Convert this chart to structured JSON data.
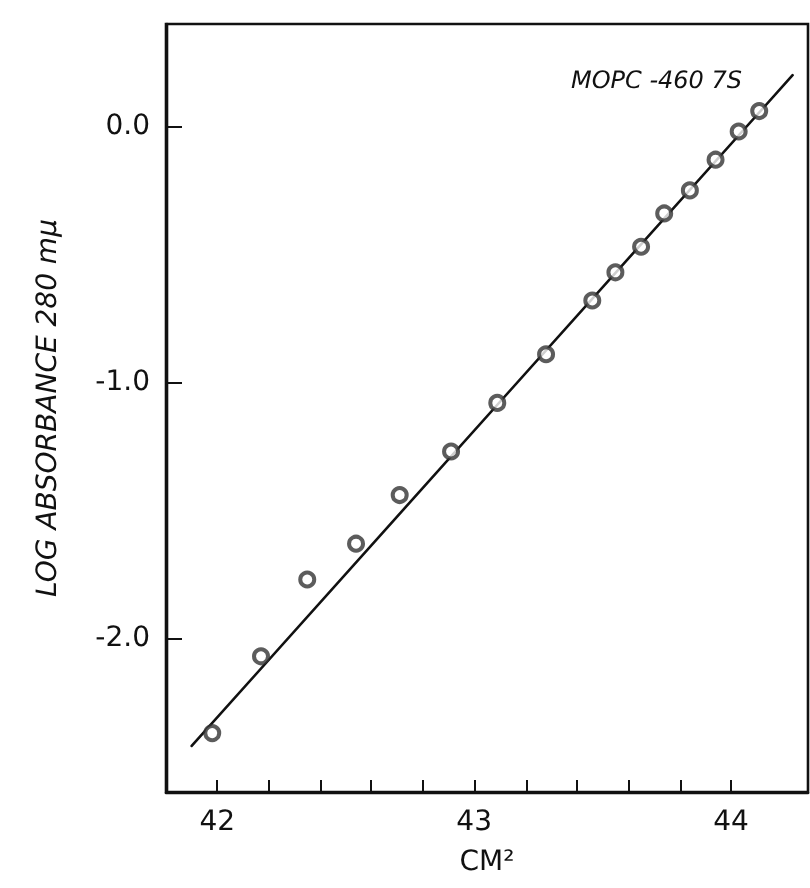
{
  "chart_data": {
    "type": "scatter",
    "xlabel": "CM²",
    "ylabel": "LOG ABSORBANCE 280 mμ",
    "annotations": [
      "MOPC -460 7S"
    ],
    "xlim": [
      41.8,
      44.3
    ],
    "ylim": [
      -2.6,
      0.4
    ],
    "xticks": [
      42,
      {
        "value": 42.2,
        "label": null
      },
      {
        "value": 42.4,
        "label": null
      },
      {
        "value": 42.6,
        "label": null
      },
      {
        "value": 42.8,
        "label": null
      },
      43,
      {
        "value": 43.2,
        "label": null
      },
      {
        "value": 43.4,
        "label": null
      },
      {
        "value": 43.6,
        "label": null
      },
      {
        "value": 43.8,
        "label": null
      },
      44
    ],
    "yticks": [
      {
        "value": 0,
        "label": "0.0"
      },
      {
        "value": -1,
        "label": "-1.0"
      },
      {
        "value": -2,
        "label": "-2.0"
      }
    ],
    "grid": false,
    "line_style": "solid",
    "series": [
      {
        "marker": "circle",
        "color": "#333333",
        "x": [
          41.98,
          42.17,
          42.35,
          42.54,
          42.71,
          42.91,
          43.09,
          43.28,
          43.46,
          43.55,
          43.65,
          43.74,
          43.84,
          43.94,
          44.03,
          44.11
        ],
        "values": [
          -2.37,
          -2.07,
          -1.77,
          -1.63,
          -1.44,
          -1.27,
          -1.08,
          -0.89,
          -0.68,
          -0.57,
          -0.47,
          -0.34,
          -0.25,
          -0.13,
          -0.02,
          0.06
        ]
      },
      {
        "type": "line",
        "color": "#111111",
        "x": [
          41.9,
          44.24
        ],
        "values": [
          -2.42,
          0.2
        ]
      }
    ]
  }
}
